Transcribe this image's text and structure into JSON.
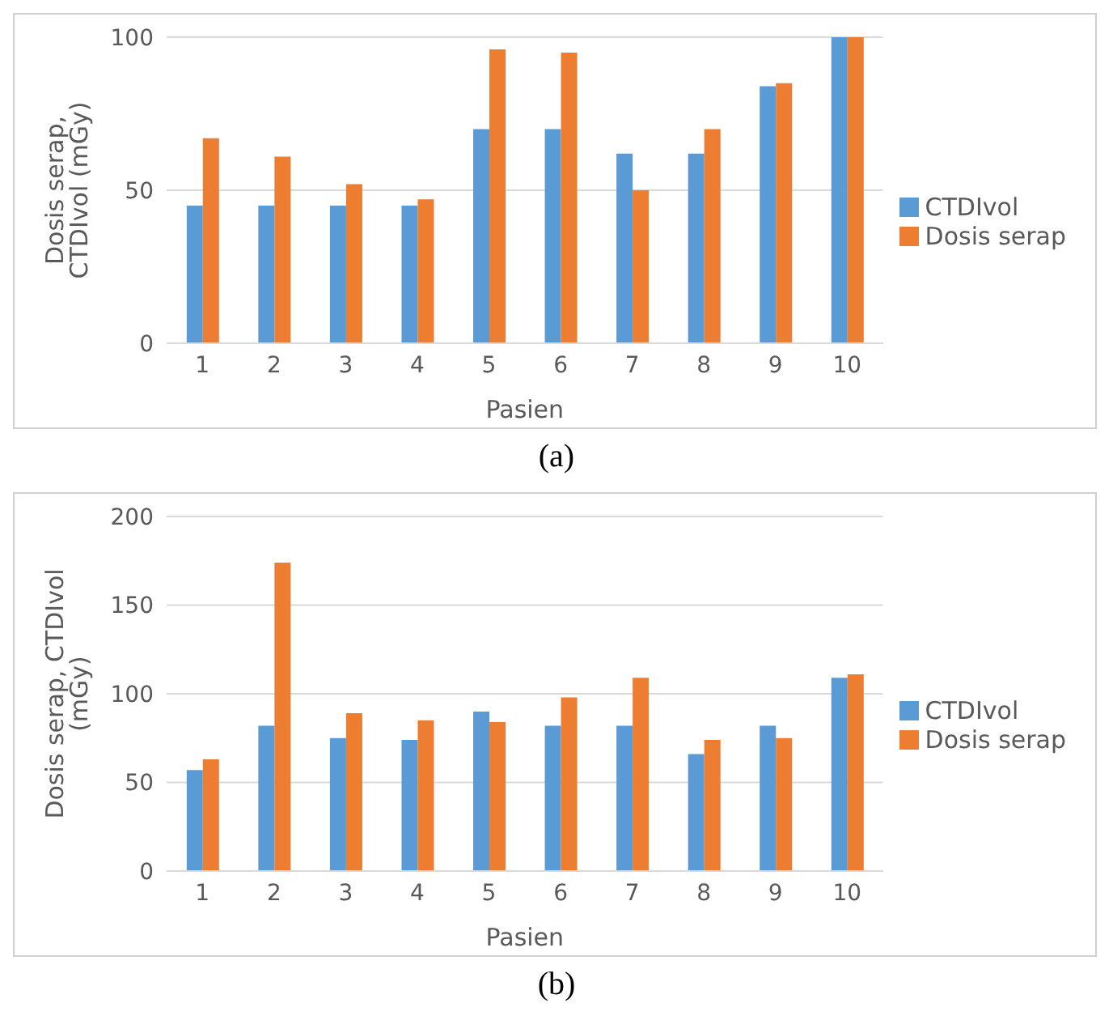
{
  "chart_data": [
    {
      "type": "bar",
      "xlabel": "Pasien",
      "ylabel": "Dosis serap, CTDIvol (mGy)",
      "categories": [
        "1",
        "2",
        "3",
        "4",
        "5",
        "6",
        "7",
        "8",
        "9",
        "10"
      ],
      "series": [
        {
          "name": "CTDIvol",
          "color": "#5b9bd5",
          "values": [
            45,
            45,
            45,
            45,
            70,
            70,
            62,
            62,
            84,
            100
          ]
        },
        {
          "name": "Dosis serap",
          "color": "#ed7d31",
          "values": [
            67,
            61,
            52,
            47,
            96,
            95,
            50,
            70,
            85,
            100
          ]
        }
      ],
      "ylim": [
        0,
        100
      ],
      "yticks": [
        0,
        50,
        100
      ],
      "grid": "y",
      "legend": "right",
      "annotations": [
        "(a)"
      ]
    },
    {
      "type": "bar",
      "xlabel": "Pasien",
      "ylabel": "Dosis serap, CTDIvol (mGy)",
      "categories": [
        "1",
        "2",
        "3",
        "4",
        "5",
        "6",
        "7",
        "8",
        "9",
        "10"
      ],
      "series": [
        {
          "name": "CTDIvol",
          "color": "#5b9bd5",
          "values": [
            57,
            82,
            75,
            74,
            90,
            82,
            82,
            66,
            82,
            109
          ]
        },
        {
          "name": "Dosis serap",
          "color": "#ed7d31",
          "values": [
            63,
            174,
            89,
            85,
            84,
            98,
            109,
            74,
            75,
            111
          ]
        }
      ],
      "ylim": [
        0,
        200
      ],
      "yticks": [
        0,
        50,
        100,
        150,
        200
      ],
      "grid": "y",
      "legend": "right",
      "annotations": [
        "(b)"
      ]
    }
  ]
}
